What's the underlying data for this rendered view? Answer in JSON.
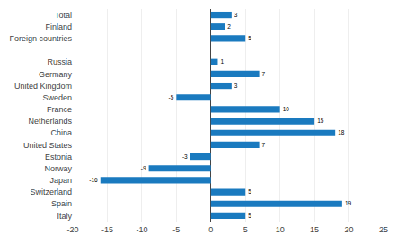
{
  "chart_data": {
    "type": "bar",
    "orientation": "horizontal",
    "categories": [
      "Total",
      "Finland",
      "Foreign countries",
      null,
      "Russia",
      "Germany",
      "United Kingdom",
      "Sweden",
      "France",
      "Netherlands",
      "China",
      "United States",
      "Estonia",
      "Norway",
      "Japan",
      "Switzerland",
      "Spain",
      "Italy"
    ],
    "values": [
      3,
      2,
      5,
      null,
      1,
      7,
      3,
      -5,
      10,
      15,
      18,
      7,
      -3,
      -9,
      -16,
      5,
      19,
      5
    ],
    "color": "#1a7abf",
    "xlim": [
      -20,
      25
    ],
    "xticks": [
      -20,
      -15,
      -10,
      -5,
      0,
      5,
      10,
      15,
      20,
      25
    ],
    "grid": true,
    "data_labels": true
  }
}
